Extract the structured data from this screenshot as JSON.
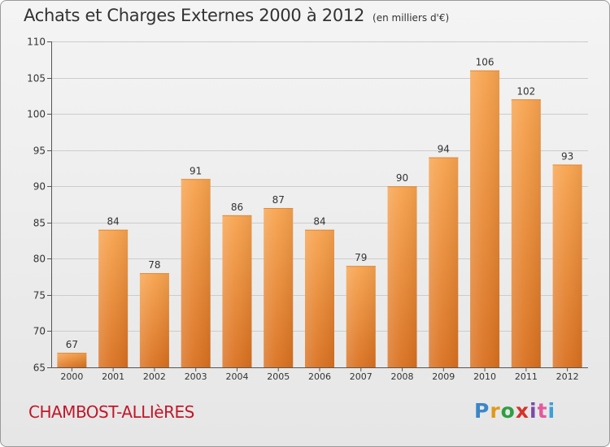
{
  "chart_data": {
    "type": "bar",
    "title": "Achats et Charges Externes 2000 à 2012",
    "subtitle": "(en milliers d'€)",
    "categories": [
      "2000",
      "2001",
      "2002",
      "2003",
      "2004",
      "2005",
      "2006",
      "2007",
      "2008",
      "2009",
      "2010",
      "2011",
      "2012"
    ],
    "values": [
      67,
      84,
      78,
      91,
      86,
      87,
      84,
      79,
      90,
      94,
      106,
      102,
      93
    ],
    "ylim": [
      65,
      110
    ],
    "yticks": [
      65,
      70,
      75,
      80,
      85,
      90,
      95,
      100,
      105,
      110
    ],
    "grid": true,
    "colors": {
      "bar_top": "#f7a34e",
      "bar_bottom": "#d9701f",
      "grid": "#cccccc"
    }
  },
  "commune": "CHAMBOST-ALLIèRES",
  "logo": {
    "text": "Proxiti",
    "letters": [
      "P",
      "r",
      "o",
      "x",
      "i",
      "t",
      "i"
    ]
  }
}
